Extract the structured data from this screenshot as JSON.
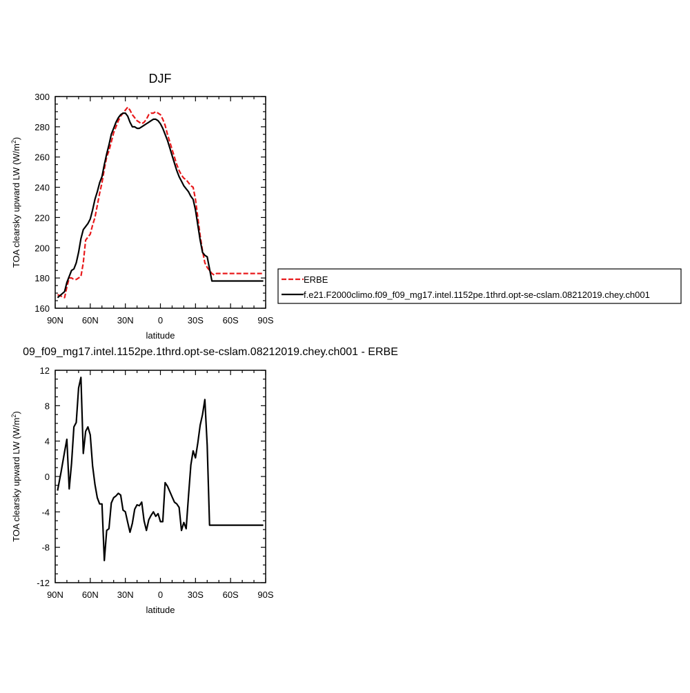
{
  "chart_data": [
    {
      "type": "line",
      "title": "DJF",
      "xlabel": "latitude",
      "ylabel_main": "TOA clearsky upward LW (W/m",
      "ylabel_sup": "2",
      "ylabel_tail": ")",
      "xlim": [
        90,
        -90
      ],
      "ylim": [
        160,
        300
      ],
      "x_ticks": [
        {
          "value": 90,
          "label": "90N"
        },
        {
          "value": 60,
          "label": "60N"
        },
        {
          "value": 30,
          "label": "30N"
        },
        {
          "value": 0,
          "label": "0"
        },
        {
          "value": -30,
          "label": "30S"
        },
        {
          "value": -60,
          "label": "60S"
        },
        {
          "value": -90,
          "label": "90S"
        }
      ],
      "y_ticks": [
        160,
        180,
        200,
        220,
        240,
        260,
        280,
        300
      ],
      "grid": false,
      "legend_placement": "right",
      "series": [
        {
          "name": "ERBE",
          "color": "#e8191b",
          "dash": "dashed",
          "x": [
            88,
            85,
            82,
            80,
            78,
            76,
            74,
            72,
            70,
            68,
            66,
            64,
            62,
            60,
            58,
            56,
            54,
            52,
            50,
            48,
            46,
            44,
            42,
            40,
            38,
            36,
            34,
            32,
            30,
            28,
            26,
            24,
            22,
            20,
            18,
            16,
            14,
            12,
            10,
            8,
            6,
            4,
            2,
            0,
            -2,
            -4,
            -6,
            -8,
            -10,
            -12,
            -14,
            -16,
            -18,
            -20,
            -22,
            -24,
            -26,
            -28,
            -30,
            -32,
            -34,
            -36,
            -38,
            -40,
            -42,
            -44,
            -46,
            -48,
            -50,
            -52,
            -54,
            -56,
            -58,
            -60,
            -62,
            -64,
            -66,
            -68,
            -70,
            -72,
            -74,
            -76,
            -78,
            -80,
            -82,
            -84,
            -86,
            -88
          ],
          "y": [
            169,
            168,
            167,
            174,
            180,
            180,
            179,
            179,
            180,
            181,
            190,
            205,
            207,
            209,
            215,
            220,
            228,
            236,
            243,
            252,
            260,
            264,
            270,
            276,
            280,
            284,
            287,
            289,
            291,
            293,
            291,
            288,
            286,
            284,
            283,
            282,
            283,
            285,
            288,
            289,
            289,
            290,
            289,
            288,
            285,
            281,
            275,
            270,
            265,
            260,
            255,
            251,
            248,
            246,
            245,
            243,
            241,
            240,
            232,
            220,
            208,
            198,
            190,
            187,
            185,
            183,
            182,
            183,
            183,
            183,
            183,
            183,
            183,
            183,
            183,
            183,
            183,
            183,
            183,
            183,
            183,
            183,
            183,
            183,
            183,
            183,
            183,
            183
          ]
        },
        {
          "name": "f.e21.F2000climo.f09_f09_mg17.intel.1152pe.1thrd.opt-se-cslam.08212019.chey.ch001",
          "color": "#000000",
          "dash": "solid",
          "x": [
            88,
            85,
            82,
            80,
            78,
            76,
            74,
            72,
            70,
            68,
            66,
            64,
            62,
            60,
            58,
            56,
            54,
            52,
            50,
            48,
            46,
            44,
            42,
            40,
            38,
            36,
            34,
            32,
            30,
            28,
            26,
            24,
            22,
            20,
            18,
            16,
            14,
            12,
            10,
            8,
            6,
            4,
            2,
            0,
            -2,
            -4,
            -6,
            -8,
            -10,
            -12,
            -14,
            -16,
            -18,
            -20,
            -22,
            -24,
            -26,
            -28,
            -30,
            -32,
            -34,
            -36,
            -38,
            -40,
            -42,
            -44,
            -46,
            -48,
            -50,
            -52,
            -54,
            -56,
            -58,
            -60,
            -62,
            -64,
            -66,
            -68,
            -70,
            -72,
            -74,
            -76,
            -78,
            -80,
            -82,
            -84,
            -86,
            -88
          ],
          "y": [
            167,
            169,
            171,
            177,
            181,
            185,
            186,
            190,
            197,
            206,
            212,
            214,
            216,
            219,
            225,
            232,
            237,
            243,
            247,
            255,
            262,
            268,
            275,
            279,
            283,
            286,
            288,
            289,
            289,
            287,
            283,
            280,
            280,
            279,
            279,
            280,
            281,
            282,
            283,
            284,
            285,
            285,
            284,
            282,
            279,
            275,
            271,
            266,
            261,
            256,
            251,
            247,
            244,
            241,
            239,
            237,
            234,
            232,
            225,
            215,
            205,
            197,
            195,
            194,
            186,
            178,
            178,
            178,
            178,
            178,
            178,
            178,
            178,
            178,
            178,
            178,
            178,
            178,
            178,
            178,
            178,
            178,
            178,
            178,
            178,
            178,
            178,
            178
          ]
        }
      ]
    },
    {
      "type": "line",
      "title": "09_f09_mg17.intel.1152pe.1thrd.opt-se-cslam.08212019.chey.ch001 - ERBE",
      "xlabel": "latitude",
      "ylabel_main": "TOA clearsky upward LW (W/m",
      "ylabel_sup": "2",
      "ylabel_tail": ")",
      "xlim": [
        90,
        -90
      ],
      "ylim": [
        -12,
        12
      ],
      "x_ticks": [
        {
          "value": 90,
          "label": "90N"
        },
        {
          "value": 60,
          "label": "60N"
        },
        {
          "value": 30,
          "label": "30N"
        },
        {
          "value": 0,
          "label": "0"
        },
        {
          "value": -30,
          "label": "30S"
        },
        {
          "value": -60,
          "label": "60S"
        },
        {
          "value": -90,
          "label": "90S"
        }
      ],
      "y_ticks": [
        -12,
        -8,
        -4,
        0,
        4,
        8,
        12
      ],
      "grid": false,
      "series": [
        {
          "color": "#000000",
          "dash": "solid",
          "x": [
            88,
            85,
            82,
            80,
            78,
            76,
            74,
            72,
            70,
            68,
            66,
            64,
            62,
            60,
            58,
            56,
            54,
            52,
            50,
            48,
            46,
            44,
            42,
            40,
            38,
            36,
            34,
            32,
            30,
            28,
            26,
            24,
            22,
            20,
            18,
            16,
            14,
            12,
            10,
            8,
            6,
            4,
            2,
            0,
            -2,
            -4,
            -6,
            -8,
            -10,
            -12,
            -14,
            -16,
            -18,
            -20,
            -22,
            -24,
            -26,
            -28,
            -30,
            -32,
            -34,
            -36,
            -38,
            -40,
            -42,
            -44,
            -46,
            -48,
            -50,
            -52,
            -54,
            -56,
            -58,
            -60,
            -62,
            -64,
            -66,
            -68,
            -70,
            -72,
            -74,
            -76,
            -78,
            -80,
            -82,
            -84,
            -86,
            -88
          ],
          "y": [
            -1.6,
            0.5,
            2.8,
            4.2,
            -1.4,
            1.5,
            5.6,
            6.1,
            10.0,
            11.2,
            2.6,
            5.1,
            5.6,
            4.7,
            1.2,
            -0.9,
            -2.4,
            -3.1,
            -3.1,
            -9.5,
            -6.1,
            -5.9,
            -3.0,
            -2.4,
            -2.2,
            -1.9,
            -2.1,
            -3.8,
            -4.0,
            -5.2,
            -6.3,
            -5.3,
            -3.7,
            -3.2,
            -3.3,
            -2.9,
            -5.0,
            -6.1,
            -4.9,
            -4.4,
            -4.0,
            -4.5,
            -4.2,
            -5.1,
            -5.1,
            -0.7,
            -1.1,
            -1.7,
            -2.3,
            -2.9,
            -3.1,
            -3.5,
            -6.1,
            -5.2,
            -5.9,
            -2.2,
            1.3,
            2.9,
            2.1,
            3.8,
            5.8,
            7.0,
            8.7,
            3.5,
            -5.5,
            -5.5,
            -5.5,
            -5.5,
            -5.5,
            -5.5,
            -5.5,
            -5.5,
            -5.5,
            -5.5,
            -5.5,
            -5.5,
            -5.5,
            -5.5,
            -5.5,
            -5.5,
            -5.5,
            -5.5,
            -5.5,
            -5.5,
            -5.5,
            -5.5,
            -5.5,
            -5.5
          ]
        }
      ]
    }
  ]
}
